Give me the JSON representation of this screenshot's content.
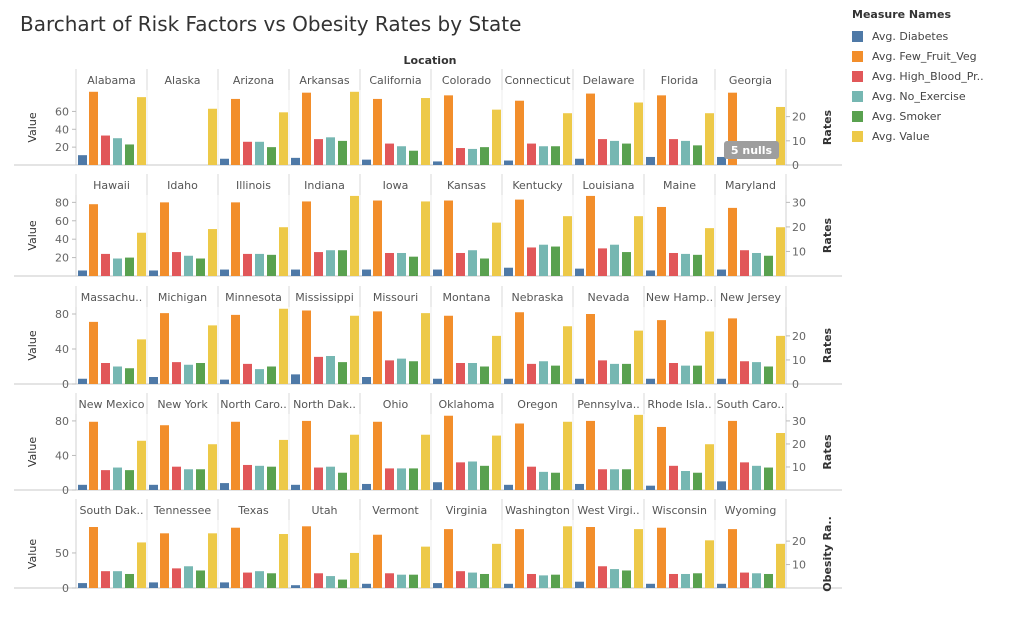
{
  "title": "Barchart of Risk Factors vs Obesity Rates by State",
  "legend": {
    "title": "Measure Names",
    "items": [
      {
        "label": "Avg. Diabetes",
        "color": "#4e79a7"
      },
      {
        "label": "Avg. Few_Fruit_Veg",
        "color": "#f28e2b"
      },
      {
        "label": "Avg. High_Blood_Pr..",
        "color": "#e15759"
      },
      {
        "label": "Avg. No_Exercise",
        "color": "#76b7b2"
      },
      {
        "label": "Avg. Smoker",
        "color": "#59a14f"
      },
      {
        "label": "Avg. Value",
        "color": "#edc948"
      }
    ]
  },
  "nulls_badge": "5 nulls",
  "chart_data": {
    "type": "bar",
    "title": "Barchart of Risk Factors vs Obesity Rates by State",
    "column_header": "Location",
    "measures": [
      "Avg. Diabetes",
      "Avg. Few_Fruit_Veg",
      "Avg. High_Blood_Pr..",
      "Avg. No_Exercise",
      "Avg. Smoker",
      "Avg. Value"
    ],
    "rows": [
      {
        "left_axis_title": "Value",
        "right_axis_title": "Rates",
        "left_ticks": [
          20,
          40,
          60
        ],
        "left_max": 84,
        "right_ticks": [
          0,
          10,
          20
        ],
        "right_max": 31,
        "states": [
          {
            "name": "Alabama",
            "values": [
              11,
              82,
              33,
              30,
              23,
              76
            ]
          },
          {
            "name": "Alaska",
            "values": [
              null,
              null,
              null,
              null,
              null,
              63
            ]
          },
          {
            "name": "Arizona",
            "values": [
              7,
              74,
              26,
              26,
              20,
              59
            ]
          },
          {
            "name": "Arkansas",
            "values": [
              8,
              81,
              29,
              31,
              27,
              82
            ]
          },
          {
            "name": "California",
            "values": [
              6,
              74,
              24,
              21,
              16,
              75
            ]
          },
          {
            "name": "Colorado",
            "values": [
              4,
              78,
              19,
              18,
              20,
              62
            ]
          },
          {
            "name": "Connecticut",
            "values": [
              5,
              72,
              24,
              21,
              21,
              58
            ]
          },
          {
            "name": "Delaware",
            "values": [
              7,
              80,
              29,
              27,
              24,
              70
            ]
          },
          {
            "name": "Florida",
            "values": [
              9,
              78,
              29,
              27,
              22,
              58
            ]
          },
          {
            "name": "Georgia",
            "values": [
              9,
              81,
              null,
              null,
              null,
              65
            ]
          }
        ]
      },
      {
        "left_axis_title": "Value",
        "right_axis_title": "Rates",
        "left_ticks": [
          20,
          40,
          60,
          80
        ],
        "left_max": 88,
        "right_ticks": [
          10,
          20,
          30
        ],
        "right_max": 33,
        "states": [
          {
            "name": "Hawaii",
            "values": [
              6,
              78,
              24,
              19,
              20,
              47
            ]
          },
          {
            "name": "Idaho",
            "values": [
              6,
              80,
              26,
              22,
              19,
              51
            ]
          },
          {
            "name": "Illinois",
            "values": [
              7,
              80,
              24,
              24,
              23,
              53
            ]
          },
          {
            "name": "Indiana",
            "values": [
              7,
              81,
              26,
              28,
              28,
              87
            ]
          },
          {
            "name": "Iowa",
            "values": [
              7,
              82,
              25,
              25,
              21,
              81
            ]
          },
          {
            "name": "Kansas",
            "values": [
              7,
              82,
              25,
              28,
              19,
              58
            ]
          },
          {
            "name": "Kentucky",
            "values": [
              9,
              83,
              31,
              34,
              32,
              65
            ]
          },
          {
            "name": "Louisiana",
            "values": [
              8,
              87,
              30,
              34,
              26,
              65
            ]
          },
          {
            "name": "Maine",
            "values": [
              6,
              75,
              25,
              24,
              23,
              52
            ]
          },
          {
            "name": "Maryland",
            "values": [
              7,
              74,
              28,
              25,
              22,
              53
            ]
          }
        ]
      },
      {
        "left_axis_title": "Value",
        "right_axis_title": "Rates",
        "left_ticks": [
          0,
          40,
          80
        ],
        "left_max": 88,
        "right_ticks": [
          0,
          10,
          20
        ],
        "right_max": 32,
        "states": [
          {
            "name": "Massachu..",
            "values": [
              6,
              71,
              24,
              20,
              18,
              51
            ]
          },
          {
            "name": "Michigan",
            "values": [
              8,
              81,
              25,
              22,
              24,
              67
            ]
          },
          {
            "name": "Minnesota",
            "values": [
              5,
              79,
              23,
              17,
              20,
              86
            ]
          },
          {
            "name": "Mississippi",
            "values": [
              11,
              84,
              31,
              32,
              25,
              78
            ]
          },
          {
            "name": "Missouri",
            "values": [
              8,
              83,
              27,
              29,
              26,
              81
            ]
          },
          {
            "name": "Montana",
            "values": [
              6,
              78,
              24,
              24,
              20,
              55
            ]
          },
          {
            "name": "Nebraska",
            "values": [
              6,
              82,
              23,
              26,
              21,
              66
            ]
          },
          {
            "name": "Nevada",
            "values": [
              6,
              80,
              27,
              23,
              23,
              61
            ]
          },
          {
            "name": "New Hamp..",
            "values": [
              6,
              73,
              24,
              21,
              21,
              60
            ]
          },
          {
            "name": "New Jersey",
            "values": [
              6,
              75,
              26,
              25,
              20,
              55
            ]
          }
        ]
      },
      {
        "left_axis_title": "Value",
        "right_axis_title": "Rates",
        "left_ticks": [
          0,
          40,
          80
        ],
        "left_max": 88,
        "right_ticks": [
          10,
          20,
          30
        ],
        "right_max": 33,
        "states": [
          {
            "name": "New Mexico",
            "values": [
              6,
              79,
              23,
              26,
              23,
              57
            ]
          },
          {
            "name": "New York",
            "values": [
              6,
              75,
              27,
              24,
              24,
              53
            ]
          },
          {
            "name": "North Caro..",
            "values": [
              8,
              79,
              29,
              28,
              27,
              58
            ]
          },
          {
            "name": "North Dak..",
            "values": [
              6,
              80,
              26,
              27,
              20,
              64
            ]
          },
          {
            "name": "Ohio",
            "values": [
              7,
              79,
              25,
              25,
              25,
              64
            ]
          },
          {
            "name": "Oklahoma",
            "values": [
              9,
              86,
              32,
              33,
              28,
              63
            ]
          },
          {
            "name": "Oregon",
            "values": [
              6,
              77,
              27,
              21,
              20,
              79
            ]
          },
          {
            "name": "Pennsylva..",
            "values": [
              7,
              80,
              24,
              24,
              24,
              87
            ]
          },
          {
            "name": "Rhode Isla..",
            "values": [
              5,
              73,
              28,
              22,
              20,
              53
            ]
          },
          {
            "name": "South Caro..",
            "values": [
              10,
              80,
              32,
              28,
              26,
              66
            ]
          }
        ]
      },
      {
        "left_axis_title": "Value",
        "right_axis_title": "Obesity Ra..",
        "left_ticks": [
          0,
          50
        ],
        "left_max": 97,
        "right_ticks": [
          10,
          20
        ],
        "right_max": 29,
        "states": [
          {
            "name": "South Dak..",
            "values": [
              7,
              87,
              24,
              24,
              20,
              65
            ]
          },
          {
            "name": "Tennessee",
            "values": [
              8,
              78,
              28,
              31,
              25,
              78
            ]
          },
          {
            "name": "Texas",
            "values": [
              8,
              86,
              22,
              24,
              21,
              77
            ]
          },
          {
            "name": "Utah",
            "values": [
              4,
              88,
              21,
              17,
              12,
              50
            ]
          },
          {
            "name": "Vermont",
            "values": [
              6,
              76,
              21,
              19,
              19,
              59
            ]
          },
          {
            "name": "Virginia",
            "values": [
              7,
              84,
              24,
              22,
              20,
              63
            ]
          },
          {
            "name": "Washington",
            "values": [
              6,
              84,
              20,
              18,
              19,
              88
            ]
          },
          {
            "name": "West Virgi..",
            "values": [
              9,
              87,
              31,
              27,
              25,
              84
            ]
          },
          {
            "name": "Wisconsin",
            "values": [
              6,
              86,
              20,
              20,
              21,
              68
            ]
          },
          {
            "name": "Wyoming",
            "values": [
              6,
              84,
              22,
              21,
              20,
              63
            ]
          }
        ]
      }
    ]
  }
}
